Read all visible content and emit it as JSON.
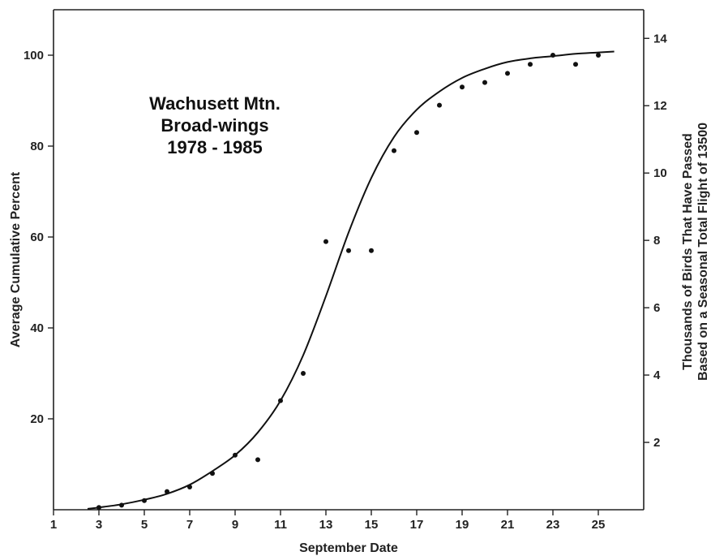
{
  "chart_data": {
    "type": "scatter",
    "title_lines": [
      "Wachusett Mtn.",
      "Broad-wings",
      "1978 - 1985"
    ],
    "xlabel": "September Date",
    "ylabel": "Average Cumulative Percent",
    "y2label_lines": [
      "Thousands of Birds That Have Passed",
      "Based on a Seasonal Total Flight of 13500"
    ],
    "xlim": [
      1,
      27
    ],
    "ylim": [
      0,
      110
    ],
    "y2lim": [
      0,
      14.85
    ],
    "x_ticks": [
      1,
      3,
      5,
      7,
      9,
      11,
      13,
      15,
      17,
      19,
      21,
      23,
      25
    ],
    "x_tick_labels": [
      "1",
      "3",
      "5",
      "7",
      "9",
      "11",
      "13",
      "15",
      "17",
      "19",
      "21",
      "23",
      "25"
    ],
    "y_ticks": [
      20,
      40,
      60,
      80,
      100
    ],
    "y_tick_labels": [
      "20",
      "40",
      "60",
      "80",
      "100"
    ],
    "y2_ticks": [
      2,
      4,
      6,
      8,
      10,
      12,
      14
    ],
    "y2_tick_labels": [
      "2",
      "4",
      "6",
      "8",
      "10",
      "12",
      "14"
    ],
    "grid": false,
    "series": [
      {
        "x": [
          3,
          4,
          5,
          6,
          7,
          8,
          9,
          10,
          11,
          12,
          13,
          14,
          15,
          16,
          17,
          18,
          19,
          20,
          21,
          22,
          23,
          24,
          25
        ],
        "y": [
          0.5,
          1,
          2,
          4,
          5,
          8,
          12,
          11,
          24,
          30,
          59,
          57,
          57,
          79,
          83,
          89,
          93,
          94,
          96,
          98,
          100,
          98,
          100
        ]
      }
    ],
    "fit_curve": {
      "x": [
        2.5,
        3,
        4,
        5,
        6,
        7,
        8,
        9,
        10,
        11,
        12,
        13,
        14,
        15,
        16,
        17,
        18,
        19,
        20,
        21,
        22,
        23,
        24,
        25,
        25.7
      ],
      "y": [
        0.2,
        0.5,
        1.2,
        2.2,
        3.5,
        5.5,
        8.5,
        12,
        17,
        24,
        34,
        47,
        61,
        73,
        82,
        88,
        92,
        95,
        97,
        98.5,
        99.3,
        99.8,
        100.3,
        100.6,
        100.8
      ]
    }
  }
}
